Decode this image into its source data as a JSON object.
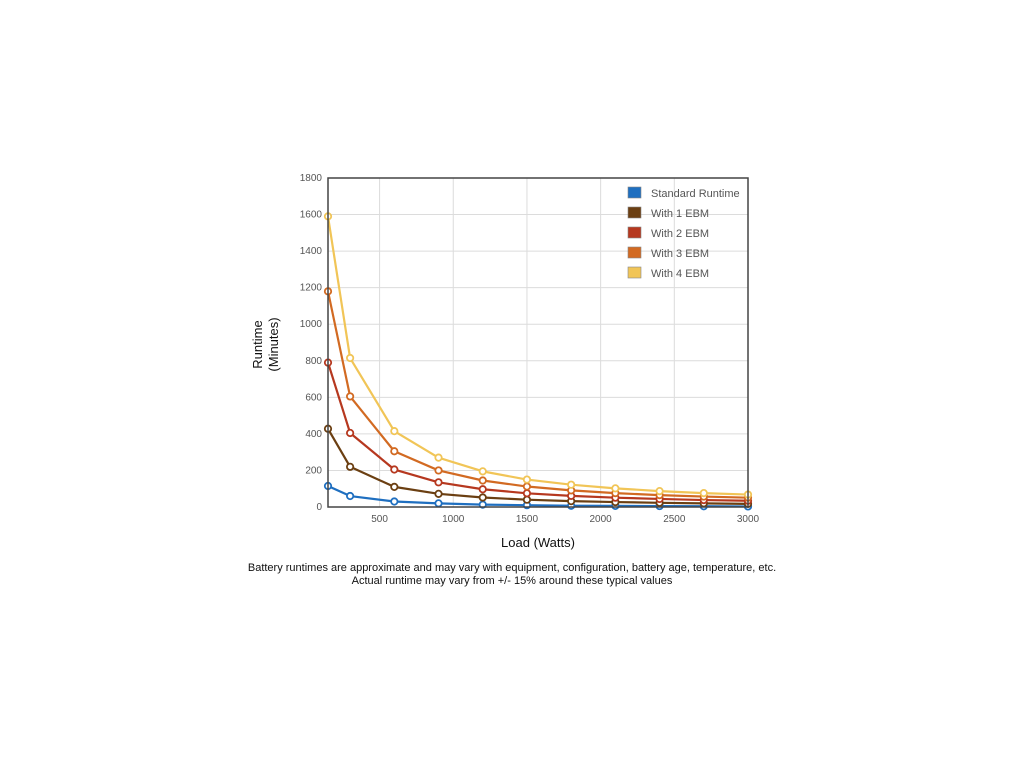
{
  "chart_data": {
    "type": "line",
    "xlabel": "Load (Watts)",
    "ylabel_lines": [
      "Runtime",
      "(Minutes)"
    ],
    "x": [
      150,
      300,
      600,
      900,
      1200,
      1500,
      1800,
      2100,
      2400,
      2700,
      3000
    ],
    "xlim": [
      150,
      3000
    ],
    "ylim": [
      0,
      1800
    ],
    "x_ticks": [
      500,
      1000,
      1500,
      2000,
      2500,
      3000
    ],
    "y_ticks": [
      0,
      200,
      400,
      600,
      800,
      1000,
      1200,
      1400,
      1600,
      1800
    ],
    "grid": true,
    "legend_position": "top-right",
    "series": [
      {
        "name": "Standard Runtime",
        "color": "#1f6fc0",
        "values": [
          115,
          60,
          30,
          20,
          13,
          10,
          7,
          6,
          5,
          4,
          3
        ]
      },
      {
        "name": "With 1 EBM",
        "color": "#6b3f12",
        "values": [
          428,
          220,
          110,
          72,
          52,
          40,
          32,
          27,
          23,
          20,
          17
        ]
      },
      {
        "name": "With 2 EBM",
        "color": "#b6381f",
        "values": [
          790,
          405,
          205,
          135,
          97,
          75,
          61,
          51,
          44,
          38,
          34
        ]
      },
      {
        "name": "With 3 EBM",
        "color": "#d26a22",
        "values": [
          1180,
          605,
          305,
          200,
          145,
          112,
          91,
          76,
          65,
          57,
          51
        ]
      },
      {
        "name": "With 4 EBM",
        "color": "#f1c557",
        "values": [
          1590,
          815,
          415,
          270,
          195,
          150,
          122,
          102,
          87,
          76,
          68
        ]
      }
    ]
  },
  "footnote": {
    "line1": "Battery runtimes are approximate and may vary with equipment, configuration, battery age, temperature, etc.",
    "line2": "Actual runtime may vary from +/- 15% around these typical values"
  }
}
